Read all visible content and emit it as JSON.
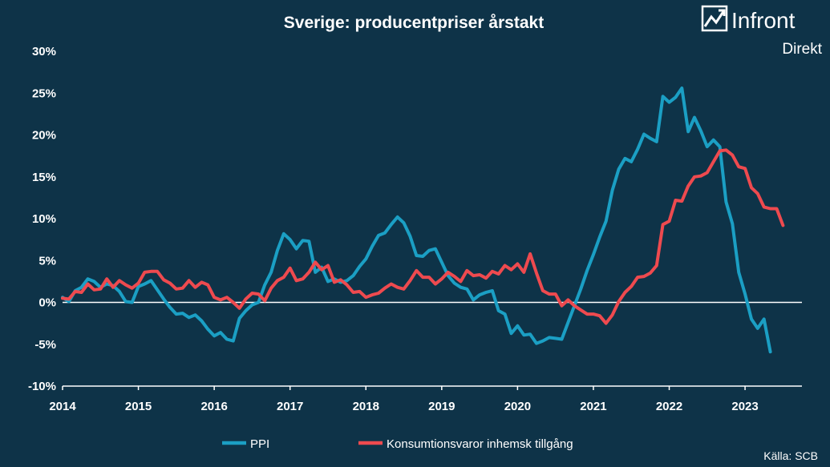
{
  "header": {
    "logo_word": "Infront",
    "logo_sub": "Direkt"
  },
  "footer": {
    "source": "Källa:  SCB"
  },
  "colors": {
    "background": "#0e3348",
    "ppi": "#1b9fc4",
    "konsumtion": "#ee4a4f",
    "text": "#ffffff"
  },
  "chart_data": {
    "type": "line",
    "title": "Sverige: producentpriser årstakt",
    "xlabel": "",
    "ylabel": "",
    "ylim": [
      -10,
      30
    ],
    "yticks": [
      -10,
      -5,
      0,
      5,
      10,
      15,
      20,
      25,
      30
    ],
    "ytick_labels": [
      "-10%",
      "-5%",
      "0%",
      "5%",
      "10%",
      "15%",
      "20%",
      "25%",
      "30%"
    ],
    "xlim": [
      2014,
      2023.75
    ],
    "xticks": [
      2014,
      2015,
      2016,
      2017,
      2018,
      2019,
      2020,
      2021,
      2022,
      2023
    ],
    "xtick_labels": [
      "2014",
      "2015",
      "2016",
      "2017",
      "2018",
      "2019",
      "2020",
      "2021",
      "2022",
      "2023"
    ],
    "grid": false,
    "legend_position": "bottom",
    "x_start": "2014-01",
    "frequency": "monthly",
    "series": [
      {
        "name": "PPI",
        "values": [
          0.6,
          0.1,
          1.4,
          1.8,
          2.8,
          2.5,
          1.8,
          2.2,
          2.0,
          1.3,
          0.1,
          0.0,
          1.9,
          2.2,
          2.6,
          1.5,
          0.4,
          -0.6,
          -1.4,
          -1.3,
          -1.8,
          -1.5,
          -2.2,
          -3.2,
          -4.0,
          -3.6,
          -4.4,
          -4.6,
          -1.9,
          -1.0,
          -0.3,
          0.0,
          2.1,
          3.6,
          6.2,
          8.2,
          7.5,
          6.4,
          7.4,
          7.3,
          3.6,
          4.2,
          2.5,
          2.8,
          2.4,
          2.6,
          3.2,
          4.3,
          5.2,
          6.7,
          8.0,
          8.3,
          9.3,
          10.2,
          9.5,
          7.9,
          5.6,
          5.5,
          6.2,
          6.4,
          4.8,
          3.2,
          2.3,
          1.8,
          1.6,
          0.3,
          0.9,
          1.2,
          1.4,
          -1.0,
          -1.4,
          -3.7,
          -2.8,
          -3.9,
          -3.8,
          -4.9,
          -4.6,
          -4.2,
          -4.3,
          -4.4,
          -2.4,
          -0.4,
          1.6,
          3.8,
          5.7,
          7.8,
          9.7,
          13.4,
          15.9,
          17.2,
          16.8,
          18.3,
          20.1,
          19.6,
          19.2,
          24.6,
          23.9,
          24.5,
          25.6,
          20.4,
          22.1,
          20.5,
          18.6,
          19.4,
          18.6,
          12.0,
          9.4,
          3.6,
          1.0,
          -2.0,
          -3.1,
          -2.0,
          -5.9
        ]
      },
      {
        "name": "Konsumtionsvaror inhemsk tillgång",
        "values": [
          0.5,
          0.4,
          1.3,
          1.2,
          2.2,
          1.5,
          1.6,
          2.8,
          1.8,
          2.6,
          2.1,
          1.7,
          2.3,
          3.6,
          3.7,
          3.7,
          2.7,
          2.3,
          1.6,
          1.7,
          2.6,
          1.8,
          2.4,
          2.1,
          0.6,
          0.3,
          0.6,
          0.0,
          -0.7,
          0.4,
          1.1,
          1.0,
          0.2,
          1.7,
          2.6,
          3.0,
          4.1,
          2.6,
          2.8,
          3.6,
          4.8,
          3.9,
          4.4,
          2.4,
          2.7,
          2.1,
          1.2,
          1.3,
          0.6,
          0.9,
          1.1,
          1.7,
          2.2,
          1.8,
          1.6,
          2.6,
          3.8,
          3.0,
          3.0,
          2.2,
          2.8,
          3.6,
          3.1,
          2.5,
          3.8,
          3.2,
          3.3,
          2.9,
          3.7,
          3.4,
          4.4,
          3.9,
          4.6,
          3.6,
          5.8,
          3.5,
          1.4,
          1.0,
          1.0,
          -0.4,
          0.3,
          -0.4,
          -0.9,
          -1.4,
          -1.4,
          -1.6,
          -2.5,
          -1.5,
          0.1,
          1.2,
          1.9,
          3.0,
          3.1,
          3.5,
          4.4,
          9.3,
          9.7,
          12.2,
          12.1,
          13.9,
          15.0,
          15.1,
          15.5,
          16.8,
          18.1,
          18.2,
          17.6,
          16.2,
          16.0,
          13.7,
          13.0,
          11.4,
          11.2,
          11.2,
          9.2
        ]
      }
    ]
  }
}
